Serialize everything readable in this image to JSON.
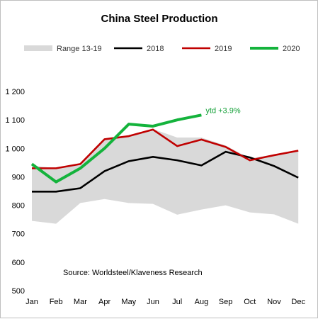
{
  "chart_data": {
    "type": "line",
    "title": "China Steel Production",
    "categories": [
      "Jan",
      "Feb",
      "Mar",
      "Apr",
      "May",
      "Jun",
      "Jul",
      "Aug",
      "Sep",
      "Oct",
      "Nov",
      "Dec"
    ],
    "ylim": [
      500,
      1200
    ],
    "yticks": [
      500,
      600,
      700,
      800,
      900,
      1000,
      1100,
      1200
    ],
    "ytick_labels": [
      "500",
      "600",
      "700",
      "800",
      "900",
      "1 000",
      "1 100",
      "1 200"
    ],
    "range": {
      "name": "Range 13-19",
      "color": "#d9d9d9",
      "low": [
        745,
        735,
        808,
        822,
        808,
        805,
        767,
        785,
        800,
        775,
        768,
        735
      ],
      "high": [
        940,
        930,
        948,
        1032,
        1045,
        1068,
        1038,
        1038,
        1010,
        965,
        978,
        992
      ]
    },
    "series": [
      {
        "name": "2018",
        "color": "#000000",
        "width": 2.6,
        "values": [
          848,
          848,
          860,
          920,
          955,
          970,
          958,
          940,
          988,
          968,
          938,
          897
        ]
      },
      {
        "name": "2019",
        "color": "#c00000",
        "width": 2.6,
        "values": [
          930,
          930,
          945,
          1032,
          1043,
          1066,
          1008,
          1031,
          1005,
          958,
          976,
          992
        ]
      },
      {
        "name": "2020",
        "color": "#14b33c",
        "width": 4,
        "values": [
          945,
          882,
          930,
          1000,
          1085,
          1078,
          1100,
          1117,
          null,
          null,
          null,
          null
        ]
      }
    ],
    "annotation": {
      "text": "ytd +3.9%",
      "color": "#14a038"
    },
    "source_text": "Source: Worldsteel/Klaveness Research",
    "grid": false,
    "legend_position": "top"
  }
}
